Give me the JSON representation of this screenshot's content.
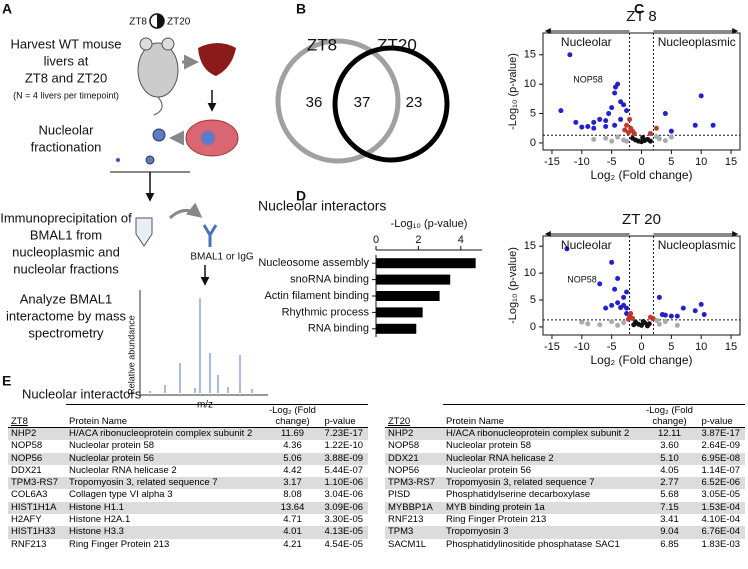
{
  "panel_labels": [
    "A",
    "B",
    "C",
    "D",
    "E"
  ],
  "panel_a": {
    "zt_labels": [
      "ZT8",
      "ZT20"
    ],
    "steps": [
      [
        "Harvest WT mouse",
        "livers at",
        "ZT8 and ZT20"
      ],
      [
        "Nucleolar",
        "fractionation"
      ],
      [
        "Immunoprecipitation of",
        "BMAL1 from",
        "nucleoplasmic and",
        "nucleolar fractions"
      ],
      [
        "Analyze BMAL1",
        "interactome by mass",
        "spectrometry"
      ]
    ],
    "note": "(N = 4 livers per timepoint)",
    "antibody": "BMAL1 or IgG",
    "spectrum": {
      "ylabel": "Relative abundance",
      "xlabel": "m/z"
    }
  },
  "venn": {
    "labels": [
      "ZT8",
      "ZT20"
    ],
    "only_first": 36,
    "both": 37,
    "only_second": 23
  },
  "chart_data": [
    {
      "type": "scatter",
      "title": "ZT 8",
      "header_left": "Nucleolar",
      "header_right": "Nucleoplasmic",
      "xlabel": "Log₂ (Fold change)",
      "ylabel": "-Log₁₀ (p-value)",
      "annotation": "NOP58",
      "xlim": [
        -16.5,
        16.5
      ],
      "ylim": [
        -1.2,
        18.7
      ],
      "xticks": [
        -15,
        -10,
        -5,
        0,
        5,
        10,
        15
      ],
      "yticks": [
        0,
        5,
        10,
        15
      ],
      "threshold_lines": {
        "x": [
          -2,
          2
        ],
        "y": 1.3
      },
      "series": [
        {
          "color": "#2222cc",
          "x": [
            -12,
            -13.5,
            -11,
            -10,
            -9,
            -8,
            -7,
            -6,
            -5.5,
            -5,
            -4.5,
            -4.36,
            -3.5,
            -4,
            -3,
            -3.5,
            -4.5,
            -6,
            -2.5,
            10,
            9,
            12,
            5,
            4,
            -8
          ],
          "y": [
            15,
            5.5,
            3.5,
            2.7,
            2.8,
            3.5,
            4,
            3.8,
            5,
            6,
            8.5,
            9.5,
            7,
            10,
            6.5,
            4,
            3,
            2.8,
            5.5,
            8,
            3,
            3,
            2,
            5,
            2.5
          ]
        },
        {
          "color": "#c0392b",
          "x": [
            -2.5,
            -1.8,
            -1.5,
            -2.2,
            -1.2,
            -2,
            -2.8,
            1.5,
            2.5
          ],
          "y": [
            3,
            2.5,
            2,
            1.8,
            1.6,
            4,
            2.2,
            1.6,
            2.5
          ]
        },
        {
          "color": "#111111",
          "x": [
            -1,
            -0.5,
            0,
            0.5,
            1,
            -1.5,
            0.2,
            1.5
          ],
          "y": [
            0.5,
            0.3,
            0.2,
            0.4,
            0.6,
            0.8,
            0.9,
            0.3
          ]
        },
        {
          "color": "#aaaaaa",
          "x": [
            -4,
            -6,
            -3,
            3,
            5,
            4,
            -8,
            -2.5,
            2.5,
            -5
          ],
          "y": [
            1,
            0.8,
            0.5,
            0.7,
            1,
            0.4,
            0.6,
            0.3,
            1.1,
            0.3
          ]
        }
      ]
    },
    {
      "type": "scatter",
      "title": "ZT 20",
      "header_left": "Nucleolar",
      "header_right": "Nucleoplasmic",
      "xlabel": "Log₂ (Fold change)",
      "ylabel": "-Log₁₀ (p-value)",
      "annotation": "NOP58",
      "xlim": [
        -16.5,
        16.5
      ],
      "ylim": [
        -1.5,
        16.9
      ],
      "xticks": [
        -15,
        -10,
        -5,
        0,
        5,
        10,
        15
      ],
      "yticks": [
        0,
        5,
        10,
        15
      ],
      "threshold_lines": {
        "x": [
          -2,
          2
        ],
        "y": 1.3
      },
      "series": [
        {
          "color": "#2222cc",
          "x": [
            -12.5,
            -7,
            -5,
            -4,
            -4.5,
            -3,
            -2.5,
            -3.5,
            -5,
            -6,
            -4,
            -3,
            -2.5,
            -2.5,
            3,
            3.5,
            4,
            6,
            7,
            9,
            10,
            10.5,
            5
          ],
          "y": [
            14.5,
            8,
            12,
            9,
            7,
            5.5,
            6.5,
            3.6,
            4,
            3.5,
            4.5,
            4,
            3.5,
            2.5,
            5.5,
            2.3,
            2.2,
            2,
            3.5,
            3,
            4.2,
            2.3,
            2
          ]
        },
        {
          "color": "#c0392b",
          "x": [
            -2,
            -1.5,
            -2.2,
            -1.8,
            2,
            1.5
          ],
          "y": [
            2,
            1.6,
            1.4,
            2.5,
            1.5,
            1.8
          ]
        },
        {
          "color": "#111111",
          "x": [
            -0.5,
            0,
            0.5,
            1,
            -1,
            -1.3,
            0.3,
            1.3
          ],
          "y": [
            0.5,
            0.3,
            0.8,
            0.2,
            0.9,
            0.4,
            1,
            0.6
          ]
        },
        {
          "color": "#aaaaaa",
          "x": [
            -9,
            -7,
            -5,
            -4,
            -3,
            3,
            4,
            6,
            -10,
            2.6
          ],
          "y": [
            0.6,
            0.4,
            1,
            0.3,
            0.8,
            0.5,
            1,
            0.3,
            0.9,
            1.2
          ]
        }
      ]
    },
    {
      "type": "bar",
      "orientation": "horizontal",
      "title": "Nucleolar interactors",
      "xlabel": "-Log₁₀ (p-value)",
      "categories": [
        "Nucleosome assembly",
        "snoRNA binding",
        "Actin filament binding",
        "Rhythmic process",
        "RNA binding"
      ],
      "values": [
        4.7,
        3.5,
        3.0,
        2.2,
        1.9
      ],
      "color": "#000000",
      "xlim": [
        0,
        5
      ],
      "xticks": [
        0,
        2,
        4
      ]
    }
  ],
  "table_title": "Nucleolar interactors",
  "tables": [
    {
      "group": "ZT8",
      "header": [
        "Protein Name",
        "-Log₂ (Fold change)",
        "p-value"
      ],
      "rows": [
        [
          "NHP2",
          "H/ACA ribonucleoprotein complex subunit 2",
          "11.69",
          "7.23E-17"
        ],
        [
          "NOP58",
          "Nucleolar protein 58",
          "4.36",
          "1.22E-10"
        ],
        [
          "NOP56",
          "Nucleolar protein 56",
          "5.06",
          "3.88E-09"
        ],
        [
          "DDX21",
          "Nucleolar RNA helicase 2",
          "4.42",
          "5.44E-07"
        ],
        [
          "TPM3-RS7",
          "Tropomyosin 3, related sequence 7",
          "3.17",
          "1.10E-06"
        ],
        [
          "COL6A3",
          "Collagen type VI alpha 3",
          "8.08",
          "3.04E-06"
        ],
        [
          "HIST1H1A",
          "Histone H1.1",
          "13.64",
          "3.09E-06"
        ],
        [
          "H2AFY",
          "Histone H2A.1",
          "4.71",
          "3.30E-05"
        ],
        [
          "HIST1H33",
          "Histone H3.3",
          "4.01",
          "4.13E-05"
        ],
        [
          "RNF213",
          "Ring Finger Protein 213",
          "4.21",
          "4.54E-05"
        ]
      ]
    },
    {
      "group": "ZT20",
      "header": [
        "Protein Name",
        "-Log₂ (Fold change)",
        "p-value"
      ],
      "rows": [
        [
          "NHP2",
          "H/ACA ribonucleoprotein complex subunit 2",
          "12.11",
          "3.87E-17"
        ],
        [
          "NOP58",
          "Nucleolar protein 58",
          "3.60",
          "2.64E-09"
        ],
        [
          "DDX21",
          "Nucleolar RNA helicase 2",
          "5.10",
          "6.95E-08"
        ],
        [
          "NOP56",
          "Nucleolar protein 56",
          "4.05",
          "1.14E-07"
        ],
        [
          "TPM3-RS7",
          "Tropomyosin 3, related sequence 7",
          "2.77",
          "6.52E-06"
        ],
        [
          "PISD",
          "Phosphatidylserine decarboxylase",
          "5.68",
          "3.05E-05"
        ],
        [
          "MYBBP1A",
          "MYB binding protein 1a",
          "7.15",
          "1.53E-04"
        ],
        [
          "RNF213",
          "Ring Finger Protein 213",
          "3.41",
          "4.10E-04"
        ],
        [
          "TPM3",
          "Tropomyosin 3",
          "9.04",
          "6.76E-04"
        ],
        [
          "SACM1L",
          "Phosphatidylinositide phosphatase SAC1",
          "6.85",
          "1.83E-03"
        ]
      ]
    }
  ]
}
